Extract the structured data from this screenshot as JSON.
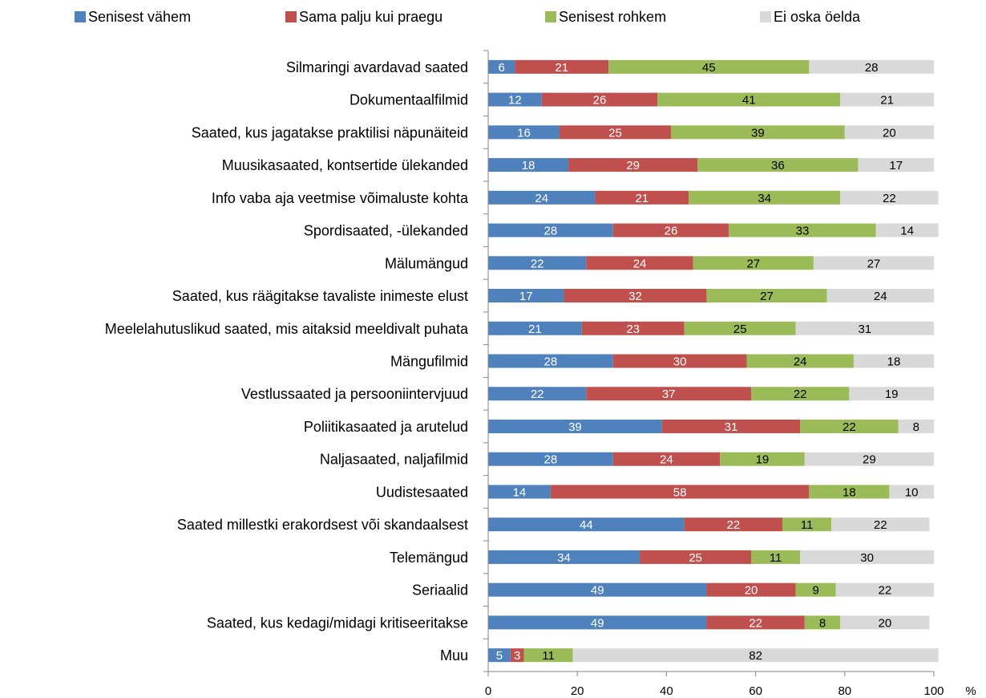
{
  "chart_data": {
    "type": "bar",
    "orientation": "horizontal",
    "stacked": true,
    "title": "",
    "xlabel": "",
    "ylabel": "",
    "unit": "%",
    "xlim": [
      0,
      100
    ],
    "xticks": [
      0,
      20,
      40,
      60,
      80,
      100
    ],
    "grid": false,
    "legend_position": "top",
    "categories": [
      "Silmaringi avardavad saated",
      "Dokumentaalfilmid",
      "Saated, kus jagatakse praktilisi näpunäiteid",
      "Muusikasaated, kontsertide ülekanded",
      "Info vaba aja veetmise võimaluste kohta",
      "Spordisaated, -ülekanded",
      "Mälumängud",
      "Saated, kus räägitakse tavaliste inimeste elust",
      "Meelelahutuslikud saated, mis aitaksid meeldivalt puhata",
      "Mängufilmid",
      "Vestlussaated ja persooniintervjuud",
      "Poliitikasaated ja arutelud",
      "Naljasaated, naljafilmid",
      "Uudistesaated",
      "Saated millestki erakordsest või skandaalsest",
      "Telemängud",
      "Seriaalid",
      "Saated, kus kedagi/midagi kritiseeritakse",
      "Muu"
    ],
    "series": [
      {
        "name": "Senisest vähem",
        "color": "#4F81BD",
        "label_color": "#ffffff",
        "values": [
          6,
          12,
          16,
          18,
          24,
          28,
          22,
          17,
          21,
          28,
          22,
          39,
          28,
          14,
          44,
          34,
          49,
          49,
          5
        ]
      },
      {
        "name": "Sama palju kui praegu",
        "color": "#C0504D",
        "label_color": "#ffffff",
        "values": [
          21,
          26,
          25,
          29,
          21,
          26,
          24,
          32,
          23,
          30,
          37,
          31,
          24,
          58,
          22,
          25,
          20,
          22,
          3
        ]
      },
      {
        "name": "Senisest rohkem",
        "color": "#9BBB59",
        "label_color": "#000000",
        "values": [
          45,
          41,
          39,
          36,
          34,
          33,
          27,
          27,
          25,
          24,
          22,
          22,
          19,
          18,
          11,
          11,
          9,
          8,
          11
        ]
      },
      {
        "name": "Ei oska öelda",
        "color": "#D9D9D9",
        "label_color": "#000000",
        "values": [
          28,
          21,
          20,
          17,
          22,
          14,
          27,
          24,
          31,
          18,
          19,
          8,
          29,
          10,
          22,
          30,
          22,
          20,
          82
        ]
      }
    ]
  }
}
